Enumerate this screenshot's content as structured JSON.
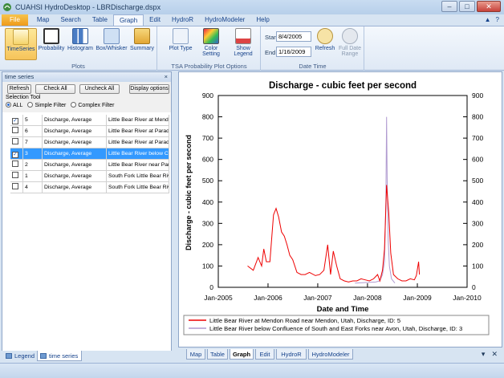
{
  "window": {
    "title": "CUAHSI HydroDesktop - LBRDischarge.dspx",
    "minimize": "–",
    "maximize": "□",
    "close": "✕"
  },
  "menu": {
    "items": [
      "File",
      "Map",
      "Search",
      "Table",
      "Graph",
      "Edit",
      "HydroR",
      "HydroModeler",
      "Help"
    ],
    "active": "Graph",
    "right_icons": [
      "▲",
      "?"
    ]
  },
  "ribbon": {
    "plots": {
      "label": "Plots",
      "buttons": [
        {
          "label": "TimeSeries",
          "icon": "timeseries-icon",
          "selected": true
        },
        {
          "label": "Probability",
          "icon": "probability-icon"
        },
        {
          "label": "Histogram",
          "icon": "histogram-icon"
        },
        {
          "label": "Box/Whisker",
          "icon": "boxwhisker-icon"
        },
        {
          "label": "Summary",
          "icon": "summary-icon"
        }
      ]
    },
    "options": {
      "label": "TSA  Probability Plot Options",
      "buttons": [
        {
          "label": "Plot Type",
          "icon": "plot-type-icon"
        },
        {
          "label": "Color Setting",
          "icon": "color-setting-icon"
        },
        {
          "label": "Show Legend",
          "icon": "show-legend-icon"
        }
      ]
    },
    "datetime": {
      "label": "Date Time",
      "start_label": "Start",
      "start_value": "8/4/2005",
      "end_label": "End",
      "end_value": "1/16/2009",
      "refresh_label": "Refresh",
      "full_range_label": "Full Date Range"
    }
  },
  "series_panel": {
    "title": "time series",
    "close": "×",
    "buttons": {
      "refresh": "Refresh",
      "check_all": "Check All",
      "uncheck_all": "Uncheck All",
      "display": "Display options"
    },
    "selection_tool": "Selection Tool",
    "filters": [
      "ALL",
      "Simple Filter",
      "Complex Filter"
    ],
    "rows": [
      {
        "checked": true,
        "id": "5",
        "variable": "Discharge, Average",
        "site": "Little Bear River at Mendon",
        "selected": false
      },
      {
        "checked": false,
        "id": "6",
        "variable": "Discharge, Average",
        "site": "Little Bear River at Paradise",
        "selected": false
      },
      {
        "checked": false,
        "id": "7",
        "variable": "Discharge, Average",
        "site": "Little Bear River at Paradise",
        "selected": false
      },
      {
        "checked": true,
        "id": "3",
        "variable": "Discharge, Average",
        "site": "Little Bear River below Confluence",
        "selected": true
      },
      {
        "checked": false,
        "id": "2",
        "variable": "Discharge, Average",
        "site": "Little Bear River near Paradise",
        "selected": false
      },
      {
        "checked": false,
        "id": "1",
        "variable": "Discharge, Average",
        "site": "South Fork Little Bear River",
        "selected": false
      },
      {
        "checked": false,
        "id": "4",
        "variable": "Discharge, Average",
        "site": "South Fork Little Bear River",
        "selected": false
      }
    ],
    "bottom_tabs": [
      "Legend",
      "time series"
    ]
  },
  "chart_data": {
    "type": "line",
    "title": "Discharge - cubic feet per second",
    "xlabel": "Date and Time",
    "ylabel": "Discharge - cubic feet per second",
    "ylim": [
      0,
      900
    ],
    "yticks": [
      0,
      100,
      200,
      300,
      400,
      500,
      600,
      700,
      800,
      900
    ],
    "xlim": [
      "2005-01-01",
      "2010-01-01"
    ],
    "xticks": [
      "Jan-2005",
      "Jan-2006",
      "Jan-2007",
      "Jan-2008",
      "Jan-2009",
      "Jan-2010"
    ],
    "grid": false,
    "legend_position": "bottom",
    "series": [
      {
        "name": "Little Bear River at Mendon Road near Mendon, Utah, Discharge, ID: 5",
        "color": "#ee0000",
        "x": [
          "2005-08-04",
          "2005-09-15",
          "2005-10-20",
          "2005-11-15",
          "2005-12-01",
          "2005-12-20",
          "2006-01-15",
          "2006-02-10",
          "2006-03-01",
          "2006-03-20",
          "2006-04-10",
          "2006-05-01",
          "2006-05-20",
          "2006-06-10",
          "2006-07-01",
          "2006-08-01",
          "2006-09-01",
          "2006-10-01",
          "2006-11-01",
          "2006-12-15",
          "2007-01-15",
          "2007-02-15",
          "2007-03-15",
          "2007-04-05",
          "2007-04-25",
          "2007-05-20",
          "2007-06-15",
          "2007-07-15",
          "2007-08-15",
          "2007-09-15",
          "2007-10-15",
          "2007-11-15",
          "2007-12-15",
          "2008-01-15",
          "2008-02-15",
          "2008-03-15",
          "2008-04-01",
          "2008-04-20",
          "2008-05-05",
          "2008-05-20",
          "2008-06-05",
          "2008-06-20",
          "2008-07-10",
          "2008-08-10",
          "2008-09-10",
          "2008-10-10",
          "2008-11-10",
          "2008-12-10",
          "2008-12-25",
          "2009-01-10",
          "2009-01-16"
        ],
        "y": [
          100,
          80,
          140,
          100,
          180,
          120,
          120,
          340,
          370,
          330,
          260,
          240,
          200,
          150,
          130,
          70,
          60,
          60,
          70,
          55,
          60,
          80,
          200,
          60,
          170,
          100,
          40,
          30,
          25,
          30,
          30,
          40,
          35,
          30,
          40,
          60,
          30,
          80,
          180,
          480,
          350,
          160,
          60,
          40,
          30,
          30,
          40,
          35,
          55,
          120,
          60
        ]
      },
      {
        "name": "Little Bear River below Confluence of South and East Forks near Avon, Utah, Discharge, ID: 3",
        "color": "#b09ad0",
        "x": [
          "2007-10-01",
          "2008-03-01",
          "2008-04-01",
          "2008-04-20",
          "2008-05-05",
          "2008-05-15",
          "2008-05-20",
          "2008-05-25",
          "2008-06-01",
          "2008-06-10",
          "2008-06-25",
          "2008-07-20"
        ],
        "y": [
          20,
          25,
          30,
          60,
          120,
          400,
          800,
          480,
          220,
          100,
          40,
          20
        ]
      }
    ]
  },
  "dock_tabs": [
    "Map",
    "Table",
    "Graph",
    "Edit",
    "HydroR",
    "HydroModeler"
  ],
  "dock_active": "Graph",
  "dock_controls": [
    "▾",
    "✕"
  ]
}
